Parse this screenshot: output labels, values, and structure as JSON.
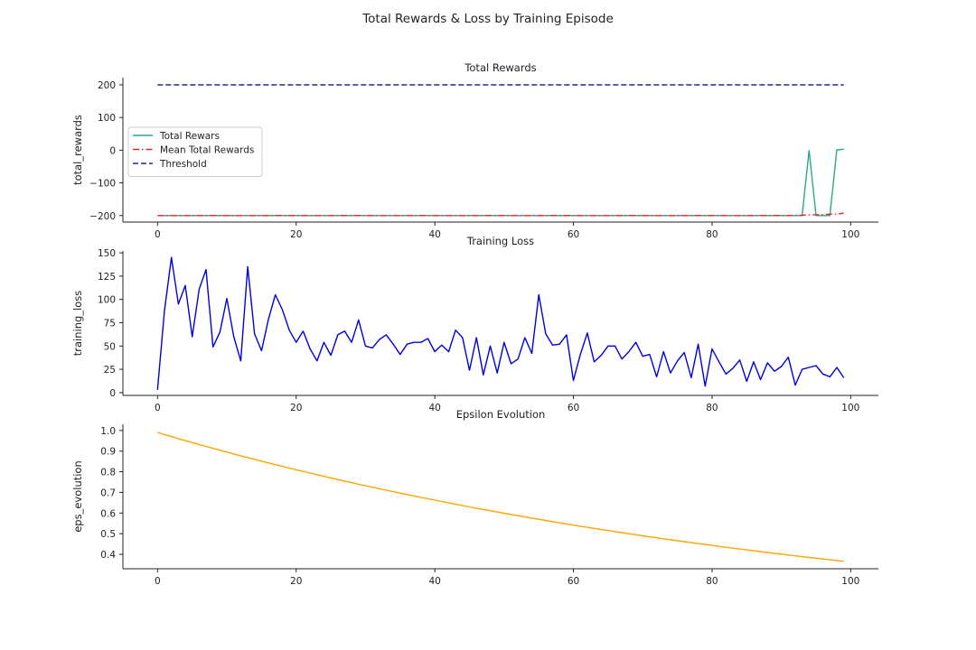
{
  "figure": {
    "title": "Total Rewards & Loss by Training Episode"
  },
  "chart_data": [
    {
      "type": "line",
      "title": "Total Rewards",
      "xlabel": "",
      "ylabel": "total_rewards",
      "xlim": [
        -5,
        104
      ],
      "ylim": [
        -220,
        222
      ],
      "xticks": [
        0,
        20,
        40,
        60,
        80,
        100
      ],
      "yticks": [
        -200,
        -100,
        0,
        100,
        200
      ],
      "ytick_labels": [
        "−200",
        "−100",
        "0",
        "100",
        "200"
      ],
      "grid": false,
      "legend": "center-left",
      "series": [
        {
          "name": "Total Rewars",
          "color": "#2ca58d",
          "style": "solid",
          "x": [
            0,
            93,
            94,
            95,
            96,
            97,
            98,
            99
          ],
          "y": [
            -200,
            -200,
            -1,
            -200,
            -200,
            -200,
            1,
            3
          ]
        },
        {
          "name": "Mean Total Rewards",
          "color": "#e8242a",
          "style": "dashdot",
          "x": [
            0,
            90,
            93,
            94,
            96,
            97,
            98,
            99
          ],
          "y": [
            -200,
            -200,
            -199,
            -198,
            -197,
            -196,
            -195,
            -193
          ]
        },
        {
          "name": "Threshold",
          "color": "#1f2a8a",
          "style": "dashed",
          "x": [
            0,
            99
          ],
          "y": [
            200,
            200
          ]
        }
      ]
    },
    {
      "type": "line",
      "title": "Training Loss",
      "xlabel": "",
      "ylabel": "training_loss",
      "xlim": [
        -5,
        104
      ],
      "ylim": [
        -3,
        152
      ],
      "xticks": [
        0,
        20,
        40,
        60,
        80,
        100
      ],
      "yticks": [
        0,
        25,
        50,
        75,
        100,
        125,
        150
      ],
      "ytick_labels": [
        "0",
        "25",
        "50",
        "75",
        "100",
        "125",
        "150"
      ],
      "grid": false,
      "series": [
        {
          "color": "#0000dd",
          "style": "solid",
          "x": [
            0,
            1,
            2,
            3,
            4,
            5,
            6,
            7,
            8,
            9,
            10,
            11,
            12,
            13,
            14,
            15,
            16,
            17,
            18,
            19,
            20,
            21,
            22,
            23,
            24,
            25,
            26,
            27,
            28,
            29,
            30,
            31,
            32,
            33,
            34,
            35,
            36,
            37,
            38,
            39,
            40,
            41,
            42,
            43,
            44,
            45,
            46,
            47,
            48,
            49,
            50,
            51,
            52,
            53,
            54,
            55,
            56,
            57,
            58,
            59,
            60,
            61,
            62,
            63,
            64,
            65,
            66,
            67,
            68,
            69,
            70,
            71,
            72,
            73,
            74,
            75,
            76,
            77,
            78,
            79,
            80,
            81,
            82,
            83,
            84,
            85,
            86,
            87,
            88,
            89,
            90,
            91,
            92,
            93,
            94,
            95,
            96,
            97,
            98,
            99
          ],
          "y": [
            3,
            88,
            145,
            95,
            115,
            60,
            111,
            132,
            49,
            65,
            101,
            60,
            34,
            135,
            63,
            45,
            79,
            105,
            89,
            67,
            54,
            66,
            47,
            34,
            54,
            40,
            62,
            66,
            54,
            78,
            50,
            48,
            57,
            62,
            52,
            41,
            52,
            54,
            54,
            58,
            44,
            51,
            44,
            67,
            59,
            24,
            59,
            19,
            50,
            21,
            54,
            31,
            36,
            59,
            42,
            105,
            63,
            51,
            52,
            62,
            13,
            41,
            64,
            33,
            40,
            50,
            50,
            36,
            44,
            54,
            39,
            41,
            17,
            44,
            21,
            34,
            43,
            16,
            52,
            7,
            47,
            33,
            20,
            26,
            35,
            12,
            33,
            14,
            32,
            23,
            28,
            38,
            8,
            25,
            27,
            29,
            20,
            17,
            27,
            16
          ]
        }
      ]
    },
    {
      "type": "line",
      "title": "Epsilon Evolution",
      "xlabel": "",
      "ylabel": "eps_evolution",
      "xlim": [
        -5,
        104
      ],
      "ylim": [
        0.33,
        1.03
      ],
      "xticks": [
        0,
        20,
        40,
        60,
        80,
        100
      ],
      "yticks": [
        0.4,
        0.5,
        0.6,
        0.7,
        0.8,
        0.9,
        1.0
      ],
      "ytick_labels": [
        "0.4",
        "0.5",
        "0.6",
        "0.7",
        "0.8",
        "0.9",
        "1.0"
      ],
      "grid": false,
      "series": [
        {
          "color": "#ffa500",
          "style": "solid",
          "formula": "0.99 * 0.99^x",
          "x_range": [
            0,
            99
          ]
        }
      ]
    }
  ]
}
